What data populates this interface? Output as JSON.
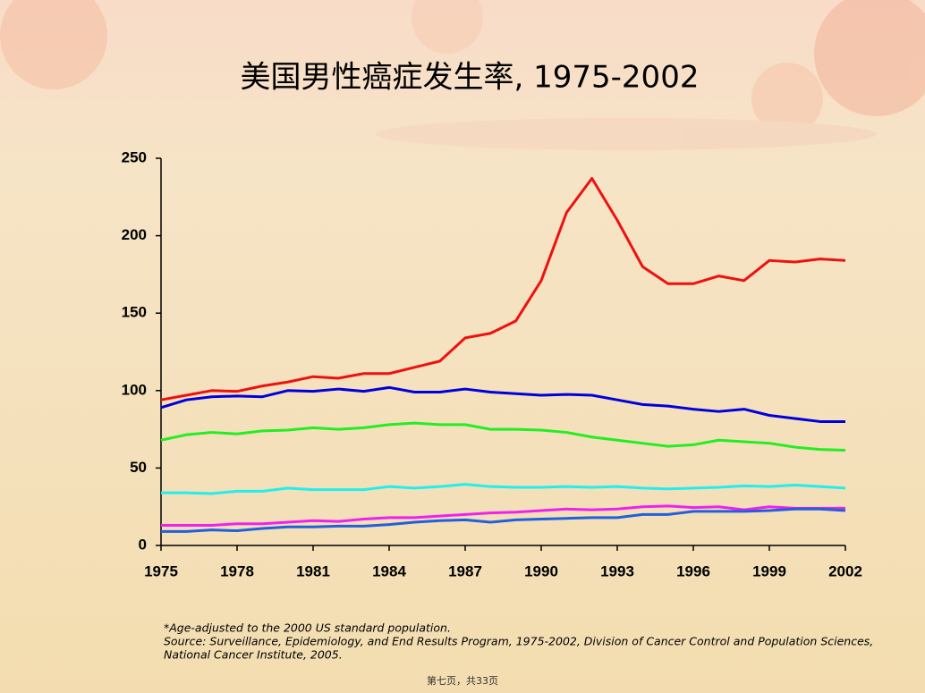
{
  "chart_data": {
    "type": "line",
    "title": "美国男性癌症发生率, 1975-2002",
    "x": [
      1975,
      1976,
      1977,
      1978,
      1979,
      1980,
      1981,
      1982,
      1983,
      1984,
      1985,
      1986,
      1987,
      1988,
      1989,
      1990,
      1991,
      1992,
      1993,
      1994,
      1995,
      1996,
      1997,
      1998,
      1999,
      2000,
      2001,
      2002
    ],
    "xlim": [
      1975,
      2002
    ],
    "xticks": [
      1975,
      1978,
      1981,
      1984,
      1987,
      1990,
      1993,
      1996,
      1999,
      2002
    ],
    "ylim": [
      0,
      250
    ],
    "yticks": [
      0,
      50,
      100,
      150,
      200,
      250
    ],
    "grid": false,
    "series": [
      {
        "color": "#ee1111",
        "values": [
          94,
          97,
          100,
          99.5,
          103,
          105.5,
          109,
          108,
          111,
          111,
          115,
          119,
          134,
          137,
          145,
          171,
          215,
          237,
          210,
          180,
          169,
          169,
          174,
          171,
          184,
          183,
          185,
          184
        ]
      },
      {
        "color": "#0000dd",
        "values": [
          89,
          94,
          96,
          96.5,
          96,
          100,
          99.5,
          101,
          99.5,
          102,
          99,
          99,
          101,
          99,
          98,
          97,
          97.5,
          97,
          94,
          91,
          90,
          88,
          86.5,
          88,
          84,
          82,
          80,
          80
        ]
      },
      {
        "color": "#22ee22",
        "values": [
          68,
          71.5,
          73,
          72,
          74,
          74.5,
          76,
          75,
          76,
          78,
          79,
          78,
          78,
          75,
          75,
          74.5,
          73,
          70,
          68,
          66,
          64,
          65,
          68,
          67,
          66,
          63.5,
          62,
          61.5
        ]
      },
      {
        "color": "#22eeee",
        "values": [
          34,
          34,
          33.5,
          35,
          35,
          37,
          36,
          36,
          36,
          38,
          37,
          38,
          39.5,
          38,
          37.5,
          37.5,
          38,
          37.5,
          38,
          37,
          36.5,
          37,
          37.5,
          38.5,
          38,
          39,
          38,
          37
        ]
      },
      {
        "color": "#ee22ee",
        "values": [
          13,
          13,
          13,
          14,
          14,
          15,
          16,
          15.5,
          17,
          18,
          18,
          19,
          20,
          21,
          21.5,
          22.5,
          23.5,
          23,
          23.5,
          25,
          25.5,
          24.5,
          25,
          23,
          25,
          24,
          24,
          24
        ]
      },
      {
        "color": "#2060dd",
        "values": [
          9,
          9,
          10,
          9.5,
          11,
          12,
          12,
          12.5,
          12.5,
          13.5,
          15,
          16,
          16.5,
          15,
          16.5,
          17,
          17.5,
          18,
          18,
          20,
          20,
          22,
          22,
          22,
          22.5,
          23.5,
          23.5,
          22.5
        ]
      }
    ]
  },
  "notes": [
    "*Age-adjusted to the 2000 US standard population.",
    "Source: Surveillance, Epidemiology, and End Results Program, 1975-2002, Division of Cancer Control and Population Sciences,",
    "National Cancer Institute, 2005."
  ],
  "footer": "第七页，共33页"
}
